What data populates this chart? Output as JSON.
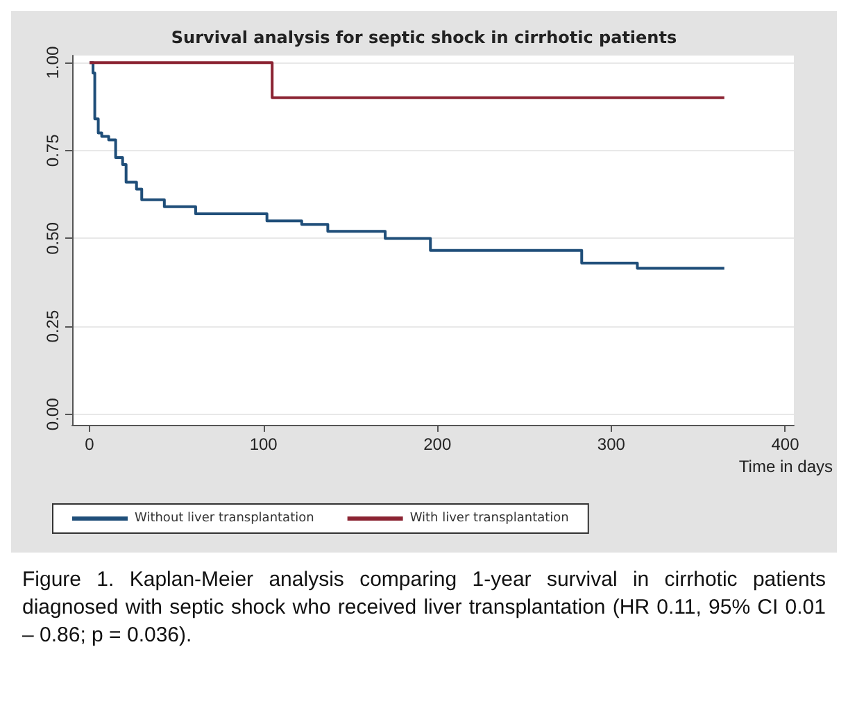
{
  "chart_data": {
    "type": "step",
    "title": "Survival analysis for septic shock in cirrhotic patients",
    "xlabel": "Time in days",
    "series": [
      {
        "name": "Without liver transplantation",
        "color": "#1f4e79",
        "x": [
          0,
          2,
          3,
          5,
          7,
          11,
          15,
          19,
          21,
          27,
          30,
          43,
          61,
          102,
          122,
          137,
          170,
          196,
          283,
          315,
          365
        ],
        "values": [
          1,
          0.97,
          0.84,
          0.8,
          0.79,
          0.78,
          0.73,
          0.71,
          0.66,
          0.64,
          0.61,
          0.59,
          0.57,
          0.55,
          0.54,
          0.52,
          0.5,
          0.466,
          0.43,
          0.415,
          0.415
        ]
      },
      {
        "name": "With liver transplantation",
        "color": "#8b2332",
        "x": [
          0,
          105,
          365
        ],
        "values": [
          1,
          0.9,
          0.9
        ]
      }
    ],
    "xlim": [
      -10,
      405
    ],
    "xticks": [
      0,
      100,
      200,
      300,
      400
    ],
    "ylim": [
      -0.03,
      1.02
    ],
    "yticks": [
      {
        "value": 0,
        "label": "0.00"
      },
      0.25,
      {
        "value": 0.5,
        "label": "0.50"
      },
      0.75,
      {
        "value": 1,
        "label": "1.00"
      }
    ],
    "grid": "y",
    "legend": "bottom",
    "marker": "none",
    "line_style": "solid",
    "annotations": [
      "Figure 1. Kaplan-Meier analysis comparing 1-year survival in cirrhotic patients diagnosed with septic shock who received liver transplantation (HR 0.11, 95% CI 0.01 – 0.86; p = 0.036)."
    ]
  }
}
